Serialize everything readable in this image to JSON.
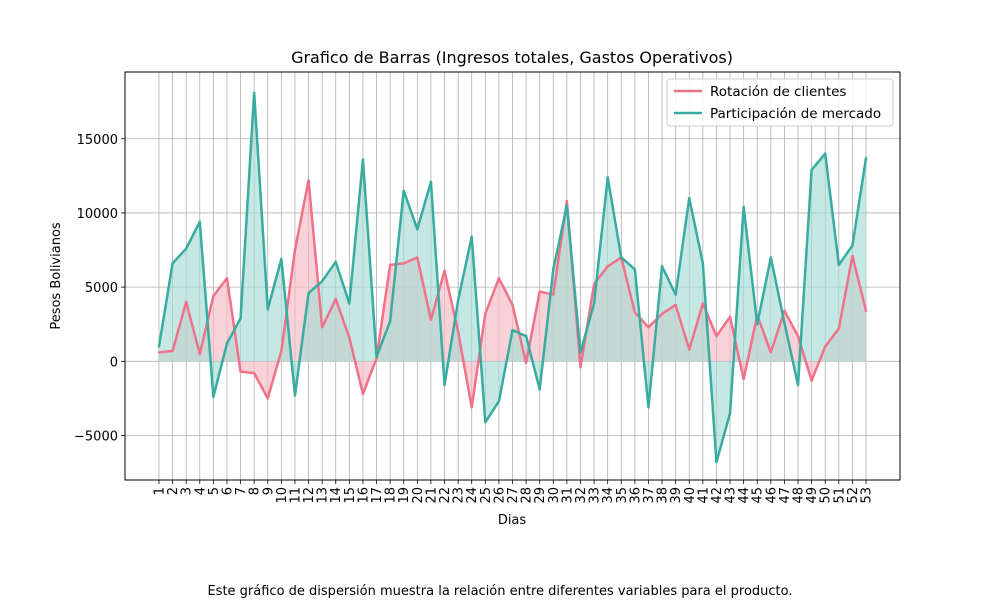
{
  "caption": "Este gráfico de dispersión muestra la relación entre diferentes variables para el producto.",
  "chart_data": {
    "type": "line",
    "title": "Grafico de Barras (Ingresos totales, Gastos Operativos)",
    "xlabel": "Dias",
    "ylabel": "Pesos Bolivianos",
    "x": [
      1,
      2,
      3,
      4,
      5,
      6,
      7,
      8,
      9,
      10,
      11,
      12,
      13,
      14,
      15,
      16,
      17,
      18,
      19,
      20,
      21,
      22,
      23,
      24,
      25,
      26,
      27,
      28,
      29,
      30,
      31,
      32,
      33,
      34,
      35,
      36,
      37,
      38,
      39,
      40,
      41,
      42,
      43,
      44,
      45,
      46,
      47,
      48,
      49,
      50,
      51,
      52,
      53
    ],
    "xlim": [
      -1.5,
      55.5
    ],
    "ylim": [
      -8000,
      19500
    ],
    "yticks": [
      -5000,
      0,
      5000,
      10000,
      15000
    ],
    "ytick_labels": [
      "−5000",
      "0",
      "5000",
      "10000",
      "15000"
    ],
    "grid": true,
    "fill_to_zero": true,
    "legend_position": "top-right",
    "series": [
      {
        "name": "Rotación de clientes",
        "color": "#f0728a",
        "fill": "#f6b8c3",
        "values": [
          600,
          700,
          4000,
          500,
          4400,
          5600,
          -700,
          -800,
          -2500,
          700,
          7500,
          12200,
          2300,
          4200,
          1600,
          -2200,
          200,
          6500,
          6600,
          7000,
          2800,
          6100,
          2000,
          -3100,
          3200,
          5600,
          3800,
          -100,
          4700,
          4500,
          10800,
          -400,
          5200,
          6400,
          7000,
          3300,
          2300,
          3200,
          3800,
          800,
          3900,
          1700,
          3000,
          -1200,
          3100,
          600,
          3400,
          1700,
          -1300,
          1000,
          2200,
          7100,
          3400
        ]
      },
      {
        "name": "Participación de mercado",
        "color": "#3aaba0",
        "fill": "#a8dcd6",
        "values": [
          1000,
          6600,
          7600,
          9400,
          -2400,
          1200,
          2900,
          18100,
          3500,
          6900,
          -2300,
          4600,
          5400,
          6700,
          3900,
          13600,
          300,
          2700,
          11500,
          8900,
          12100,
          -1600,
          4100,
          8400,
          -4100,
          -2700,
          2100,
          1700,
          -1900,
          6200,
          10500,
          600,
          3900,
          12400,
          7000,
          6200,
          -3100,
          6400,
          4500,
          11000,
          6600,
          -6800,
          -3500,
          10400,
          2500,
          7000,
          2600,
          -1600,
          12900,
          14000,
          6500,
          7800,
          13700
        ]
      }
    ]
  }
}
